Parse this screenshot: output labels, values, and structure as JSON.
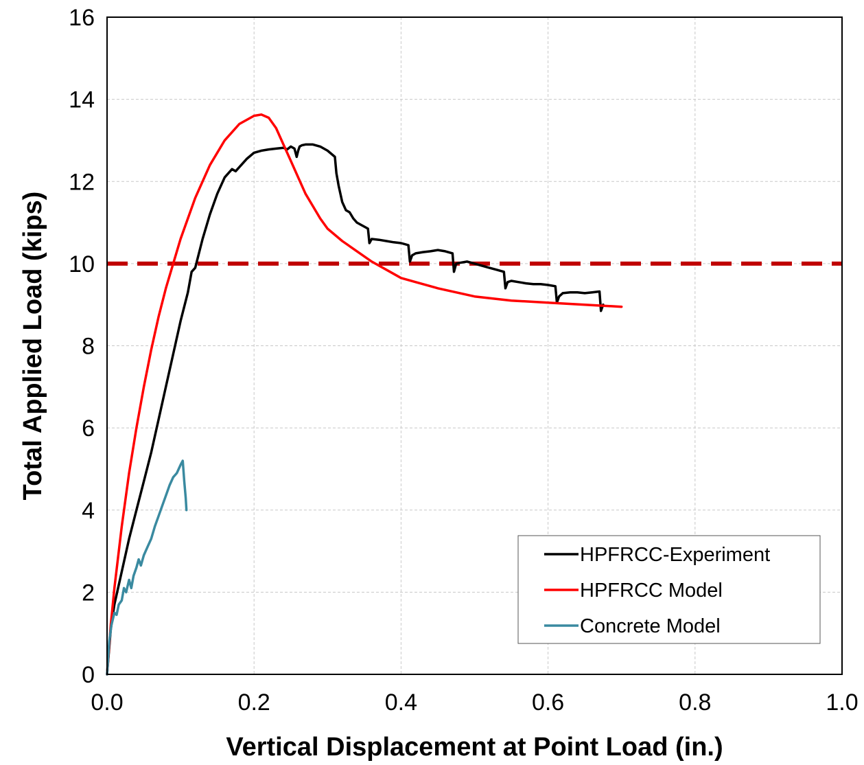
{
  "chart_data": {
    "type": "line",
    "title": "",
    "xlabel": "Vertical Displacement at Point Load (in.)",
    "ylabel": "Total Applied Load (kips)",
    "xlim": [
      0.0,
      1.0
    ],
    "ylim": [
      0,
      16
    ],
    "xticks": [
      "0.0",
      "0.2",
      "0.4",
      "0.6",
      "0.8",
      "1.0"
    ],
    "yticks": [
      "0",
      "2",
      "4",
      "6",
      "8",
      "10",
      "12",
      "14",
      "16"
    ],
    "grid": true,
    "grid_style": "dashed",
    "legend_position": "lower-right",
    "series": [
      {
        "name": "HPFRCC-Experiment",
        "color": "#000000",
        "x": [
          0.0,
          0.005,
          0.01,
          0.02,
          0.03,
          0.04,
          0.05,
          0.06,
          0.07,
          0.08,
          0.09,
          0.1,
          0.11,
          0.115,
          0.12,
          0.13,
          0.14,
          0.15,
          0.16,
          0.17,
          0.175,
          0.18,
          0.19,
          0.2,
          0.21,
          0.22,
          0.23,
          0.24,
          0.245,
          0.25,
          0.255,
          0.258,
          0.26,
          0.262,
          0.265,
          0.27,
          0.28,
          0.29,
          0.3,
          0.31,
          0.312,
          0.315,
          0.32,
          0.325,
          0.33,
          0.335,
          0.34,
          0.345,
          0.35,
          0.355,
          0.357,
          0.36,
          0.37,
          0.38,
          0.39,
          0.4,
          0.41,
          0.412,
          0.415,
          0.42,
          0.43,
          0.44,
          0.45,
          0.46,
          0.47,
          0.472,
          0.475,
          0.48,
          0.49,
          0.5,
          0.51,
          0.52,
          0.53,
          0.54,
          0.542,
          0.545,
          0.55,
          0.56,
          0.57,
          0.58,
          0.59,
          0.6,
          0.61,
          0.612,
          0.615,
          0.62,
          0.63,
          0.64,
          0.65,
          0.66,
          0.67,
          0.672,
          0.675
        ],
        "values": [
          0,
          1.1,
          1.7,
          2.5,
          3.3,
          4.0,
          4.7,
          5.4,
          6.2,
          7.0,
          7.8,
          8.6,
          9.3,
          9.8,
          9.9,
          10.6,
          11.2,
          11.7,
          12.1,
          12.3,
          12.25,
          12.35,
          12.55,
          12.7,
          12.75,
          12.78,
          12.8,
          12.82,
          12.78,
          12.85,
          12.8,
          12.6,
          12.75,
          12.85,
          12.88,
          12.9,
          12.9,
          12.85,
          12.75,
          12.6,
          12.2,
          11.9,
          11.5,
          11.3,
          11.25,
          11.1,
          11.0,
          10.95,
          10.9,
          10.85,
          10.5,
          10.6,
          10.58,
          10.55,
          10.52,
          10.5,
          10.45,
          10.05,
          10.2,
          10.25,
          10.28,
          10.3,
          10.33,
          10.3,
          10.25,
          9.8,
          10.0,
          10.02,
          10.05,
          10.0,
          9.95,
          9.9,
          9.85,
          9.8,
          9.4,
          9.55,
          9.58,
          9.55,
          9.52,
          9.5,
          9.5,
          9.48,
          9.45,
          9.05,
          9.2,
          9.28,
          9.3,
          9.3,
          9.28,
          9.3,
          9.32,
          8.85,
          9.0
        ]
      },
      {
        "name": "HPFRCC Model",
        "color": "#ff0000",
        "x": [
          0.0,
          0.005,
          0.01,
          0.02,
          0.03,
          0.04,
          0.05,
          0.06,
          0.07,
          0.08,
          0.09,
          0.1,
          0.12,
          0.14,
          0.16,
          0.18,
          0.2,
          0.21,
          0.22,
          0.23,
          0.24,
          0.25,
          0.26,
          0.27,
          0.28,
          0.29,
          0.3,
          0.31,
          0.32,
          0.34,
          0.36,
          0.38,
          0.4,
          0.42,
          0.45,
          0.5,
          0.55,
          0.6,
          0.65,
          0.7
        ],
        "values": [
          0,
          1.2,
          2.1,
          3.6,
          4.9,
          6.0,
          7.0,
          7.9,
          8.7,
          9.4,
          10.0,
          10.6,
          11.6,
          12.4,
          13.0,
          13.4,
          13.6,
          13.63,
          13.55,
          13.3,
          12.9,
          12.5,
          12.1,
          11.7,
          11.4,
          11.1,
          10.85,
          10.7,
          10.55,
          10.3,
          10.05,
          9.85,
          9.65,
          9.55,
          9.4,
          9.2,
          9.1,
          9.05,
          9.0,
          8.95
        ]
      },
      {
        "name": "Concrete Model",
        "color": "#3a8aa0",
        "x": [
          0.0,
          0.003,
          0.006,
          0.01,
          0.013,
          0.016,
          0.02,
          0.023,
          0.026,
          0.03,
          0.033,
          0.036,
          0.04,
          0.043,
          0.046,
          0.05,
          0.055,
          0.06,
          0.065,
          0.07,
          0.075,
          0.08,
          0.085,
          0.09,
          0.095,
          0.1,
          0.103,
          0.105,
          0.107,
          0.108
        ],
        "values": [
          0,
          0.8,
          1.2,
          1.5,
          1.45,
          1.7,
          1.8,
          2.1,
          2.0,
          2.3,
          2.1,
          2.4,
          2.6,
          2.8,
          2.65,
          2.9,
          3.1,
          3.3,
          3.6,
          3.85,
          4.1,
          4.35,
          4.6,
          4.8,
          4.9,
          5.1,
          5.2,
          4.7,
          4.3,
          4.0
        ]
      }
    ],
    "reference_lines": [
      {
        "orientation": "horizontal",
        "y": 10,
        "color": "#c00000",
        "style": "dashed"
      }
    ]
  }
}
